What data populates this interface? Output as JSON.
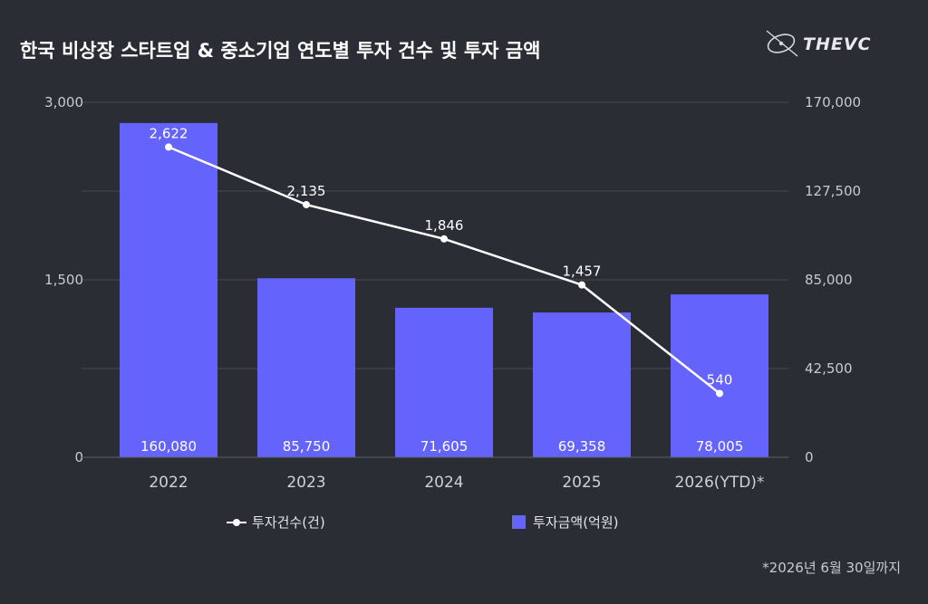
{
  "colors": {
    "background": "#2b2d34",
    "bar": "#6463fb",
    "line": "#ffffff",
    "grid": "#4a4c54",
    "axis_text": "#c9cad0"
  },
  "brand": {
    "name": "THEVC",
    "icon": "thevc-logo-icon"
  },
  "legend": {
    "line_label": "투자건수(건)",
    "bar_label": "투자금액(억원)"
  },
  "footnote": "*2026년 6월 30일까지",
  "chart_data": {
    "type": "bar",
    "title": "한국 비상장 스타트업 & 중소기업 연도별 투자 건수 및 투자 금액",
    "categories": [
      "2022",
      "2023",
      "2024",
      "2025",
      "2026(YTD)*"
    ],
    "series": [
      {
        "name": "투자금액(억원)",
        "type": "bar",
        "axis": "right",
        "values": [
          160080,
          85750,
          71605,
          69358,
          78005
        ],
        "labels": [
          "160,080",
          "85,750",
          "71,605",
          "69,358",
          "78,005"
        ]
      },
      {
        "name": "투자건수(건)",
        "type": "line",
        "axis": "left",
        "values": [
          2622,
          2135,
          1846,
          1457,
          540
        ],
        "labels": [
          "2,622",
          "2,135",
          "1,846",
          "1,457",
          "540"
        ]
      }
    ],
    "y_left": {
      "min": 0,
      "max": 3000,
      "ticks": [
        "0",
        "1,500",
        "3,000"
      ]
    },
    "y_right": {
      "min": 0,
      "max": 170000,
      "ticks": [
        "0",
        "42,500",
        "85,000",
        "127,500",
        "170,000"
      ]
    },
    "grid": true,
    "legend_position": "bottom"
  }
}
